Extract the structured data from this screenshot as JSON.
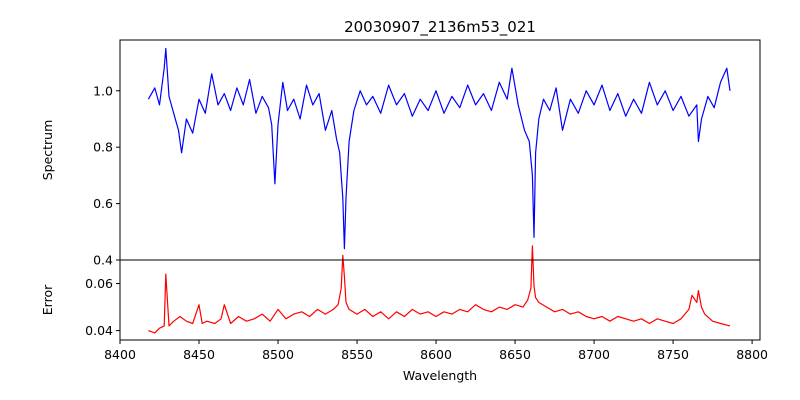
{
  "chart_data": {
    "type": "line",
    "title": "20030907_2136m53_021",
    "xlabel": "Wavelength",
    "xlim": [
      8400,
      8805
    ],
    "x_ticks": [
      8400,
      8450,
      8500,
      8550,
      8600,
      8650,
      8700,
      8750,
      8800
    ],
    "panels": [
      {
        "name": "spectrum-panel",
        "ylabel": "Spectrum",
        "ylim": [
          0.4,
          1.18
        ],
        "y_ticks": [
          0.4,
          0.6,
          0.8,
          1.0
        ],
        "y_tick_labels": [
          "0.4",
          "0.6",
          "0.8",
          "1.0"
        ],
        "series": [
          {
            "color": "#0000ff",
            "x": [
              8418,
              8422,
              8425,
              8428,
              8429,
              8431,
              8434,
              8437,
              8439,
              8442,
              8446,
              8450,
              8454,
              8458,
              8462,
              8466,
              8470,
              8474,
              8478,
              8482,
              8486,
              8490,
              8494,
              8496,
              8498,
              8500,
              8503,
              8506,
              8510,
              8514,
              8518,
              8522,
              8526,
              8530,
              8534,
              8537,
              8539,
              8540,
              8541,
              8542,
              8543,
              8545,
              8548,
              8552,
              8556,
              8560,
              8565,
              8570,
              8575,
              8580,
              8585,
              8590,
              8595,
              8600,
              8605,
              8610,
              8615,
              8620,
              8625,
              8630,
              8635,
              8640,
              8645,
              8648,
              8652,
              8656,
              8659,
              8661,
              8662,
              8663,
              8665,
              8668,
              8672,
              8676,
              8680,
              8685,
              8690,
              8695,
              8700,
              8705,
              8710,
              8715,
              8720,
              8725,
              8730,
              8735,
              8740,
              8745,
              8750,
              8755,
              8760,
              8765,
              8766,
              8768,
              8772,
              8776,
              8780,
              8784,
              8786
            ],
            "y": [
              0.97,
              1.01,
              0.95,
              1.08,
              1.15,
              0.98,
              0.92,
              0.86,
              0.78,
              0.9,
              0.85,
              0.97,
              0.92,
              1.06,
              0.95,
              0.99,
              0.93,
              1.01,
              0.95,
              1.04,
              0.92,
              0.98,
              0.94,
              0.88,
              0.67,
              0.88,
              1.03,
              0.93,
              0.97,
              0.9,
              1.02,
              0.95,
              0.99,
              0.86,
              0.93,
              0.83,
              0.78,
              0.7,
              0.62,
              0.44,
              0.62,
              0.82,
              0.93,
              1.0,
              0.95,
              0.98,
              0.92,
              1.02,
              0.95,
              0.99,
              0.91,
              0.97,
              0.93,
              1.0,
              0.92,
              0.98,
              0.94,
              1.02,
              0.95,
              0.99,
              0.93,
              1.03,
              0.97,
              1.08,
              0.95,
              0.86,
              0.82,
              0.7,
              0.48,
              0.78,
              0.9,
              0.97,
              0.93,
              1.01,
              0.86,
              0.97,
              0.92,
              1.0,
              0.95,
              1.02,
              0.93,
              0.99,
              0.91,
              0.97,
              0.92,
              1.03,
              0.95,
              1.0,
              0.93,
              0.98,
              0.91,
              0.95,
              0.82,
              0.9,
              0.98,
              0.94,
              1.03,
              1.08,
              1.0
            ]
          }
        ]
      },
      {
        "name": "error-panel",
        "ylabel": "Error",
        "ylim": [
          0.036,
          0.07
        ],
        "y_ticks": [
          0.04,
          0.06
        ],
        "y_tick_labels": [
          "0.04",
          "0.06"
        ],
        "series": [
          {
            "color": "#ff0000",
            "x": [
              8418,
              8422,
              8425,
              8428,
              8429,
              8431,
              8434,
              8438,
              8442,
              8446,
              8450,
              8452,
              8455,
              8460,
              8464,
              8466,
              8470,
              8475,
              8480,
              8485,
              8490,
              8495,
              8500,
              8505,
              8510,
              8515,
              8520,
              8525,
              8530,
              8535,
              8538,
              8540,
              8541,
              8542,
              8543,
              8545,
              8550,
              8555,
              8560,
              8565,
              8570,
              8575,
              8580,
              8585,
              8590,
              8595,
              8600,
              8605,
              8610,
              8615,
              8620,
              8625,
              8630,
              8635,
              8640,
              8645,
              8650,
              8655,
              8658,
              8660,
              8661,
              8662,
              8663,
              8665,
              8670,
              8675,
              8680,
              8685,
              8690,
              8695,
              8700,
              8705,
              8710,
              8715,
              8720,
              8725,
              8730,
              8735,
              8740,
              8745,
              8750,
              8755,
              8760,
              8762,
              8765,
              8766,
              8768,
              8770,
              8775,
              8780,
              8786
            ],
            "y": [
              0.04,
              0.039,
              0.041,
              0.042,
              0.064,
              0.042,
              0.044,
              0.046,
              0.044,
              0.043,
              0.051,
              0.043,
              0.044,
              0.043,
              0.045,
              0.051,
              0.043,
              0.046,
              0.044,
              0.045,
              0.047,
              0.044,
              0.049,
              0.045,
              0.047,
              0.048,
              0.046,
              0.049,
              0.047,
              0.049,
              0.051,
              0.058,
              0.072,
              0.063,
              0.052,
              0.049,
              0.047,
              0.049,
              0.046,
              0.048,
              0.045,
              0.048,
              0.046,
              0.049,
              0.047,
              0.048,
              0.046,
              0.048,
              0.047,
              0.049,
              0.048,
              0.051,
              0.049,
              0.048,
              0.05,
              0.049,
              0.051,
              0.05,
              0.053,
              0.058,
              0.076,
              0.059,
              0.054,
              0.052,
              0.05,
              0.048,
              0.049,
              0.047,
              0.048,
              0.046,
              0.045,
              0.046,
              0.044,
              0.046,
              0.045,
              0.044,
              0.045,
              0.043,
              0.045,
              0.044,
              0.043,
              0.045,
              0.049,
              0.055,
              0.052,
              0.057,
              0.05,
              0.047,
              0.044,
              0.043,
              0.042
            ]
          }
        ]
      }
    ]
  }
}
